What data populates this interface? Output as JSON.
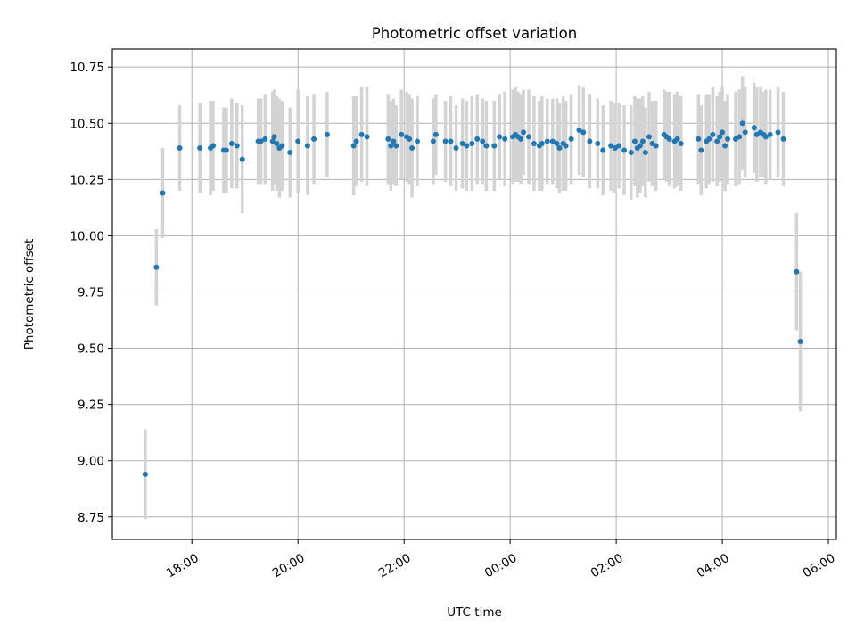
{
  "chart_data": {
    "type": "scatter",
    "title": "Photometric offset variation",
    "xlabel": "UTC time",
    "ylabel": "Photometric offset",
    "xlim_hours": [
      16.5,
      30.15
    ],
    "ylim": [
      8.65,
      10.83
    ],
    "grid": true,
    "x_ticks": [
      {
        "t": 18,
        "label": "18:00"
      },
      {
        "t": 20,
        "label": "20:00"
      },
      {
        "t": 22,
        "label": "22:00"
      },
      {
        "t": 24,
        "label": "00:00"
      },
      {
        "t": 26,
        "label": "02:00"
      },
      {
        "t": 28,
        "label": "04:00"
      },
      {
        "t": 30,
        "label": "06:00"
      }
    ],
    "y_ticks": [
      {
        "v": 8.75,
        "label": "8.75"
      },
      {
        "v": 9.0,
        "label": "9.00"
      },
      {
        "v": 9.25,
        "label": "9.25"
      },
      {
        "v": 9.5,
        "label": "9.50"
      },
      {
        "v": 9.75,
        "label": "9.75"
      },
      {
        "v": 10.0,
        "label": "10.00"
      },
      {
        "v": 10.25,
        "label": "10.25"
      },
      {
        "v": 10.5,
        "label": "10.50"
      },
      {
        "v": 10.75,
        "label": "10.75"
      }
    ],
    "colors": {
      "point": "#1f77b4",
      "errorbar": "#d3d3d3",
      "grid": "#b0b0b0"
    },
    "points": [
      [
        17.12,
        8.94,
        0.2
      ],
      [
        17.33,
        9.86,
        0.17
      ],
      [
        17.45,
        10.19,
        0.2
      ],
      [
        17.77,
        10.39,
        0.19
      ],
      [
        18.15,
        10.39,
        0.2
      ],
      [
        18.35,
        10.39,
        0.21
      ],
      [
        18.4,
        10.4,
        0.2
      ],
      [
        18.6,
        10.38,
        0.19
      ],
      [
        18.65,
        10.38,
        0.19
      ],
      [
        18.75,
        10.41,
        0.2
      ],
      [
        18.85,
        10.4,
        0.19
      ],
      [
        18.95,
        10.34,
        0.24
      ],
      [
        19.25,
        10.42,
        0.19
      ],
      [
        19.3,
        10.42,
        0.19
      ],
      [
        19.38,
        10.43,
        0.2
      ],
      [
        19.52,
        10.42,
        0.22
      ],
      [
        19.55,
        10.44,
        0.21
      ],
      [
        19.6,
        10.41,
        0.21
      ],
      [
        19.65,
        10.39,
        0.22
      ],
      [
        19.7,
        10.4,
        0.2
      ],
      [
        19.85,
        10.37,
        0.2
      ],
      [
        20.0,
        10.42,
        0.23
      ],
      [
        20.18,
        10.4,
        0.22
      ],
      [
        20.3,
        10.43,
        0.2
      ],
      [
        20.55,
        10.45,
        0.19
      ],
      [
        21.05,
        10.4,
        0.22
      ],
      [
        21.1,
        10.42,
        0.2
      ],
      [
        21.2,
        10.45,
        0.21
      ],
      [
        21.3,
        10.44,
        0.22
      ],
      [
        21.7,
        10.43,
        0.2
      ],
      [
        21.75,
        10.4,
        0.2
      ],
      [
        21.8,
        10.42,
        0.19
      ],
      [
        21.85,
        10.4,
        0.18
      ],
      [
        21.95,
        10.45,
        0.2
      ],
      [
        22.05,
        10.44,
        0.2
      ],
      [
        22.1,
        10.43,
        0.2
      ],
      [
        22.15,
        10.39,
        0.22
      ],
      [
        22.25,
        10.42,
        0.2
      ],
      [
        22.55,
        10.42,
        0.19
      ],
      [
        22.6,
        10.45,
        0.18
      ],
      [
        22.78,
        10.42,
        0.18
      ],
      [
        22.88,
        10.42,
        0.2
      ],
      [
        22.98,
        10.39,
        0.19
      ],
      [
        23.1,
        10.41,
        0.2
      ],
      [
        23.18,
        10.4,
        0.2
      ],
      [
        23.28,
        10.41,
        0.21
      ],
      [
        23.38,
        10.43,
        0.2
      ],
      [
        23.48,
        10.42,
        0.19
      ],
      [
        23.55,
        10.4,
        0.2
      ],
      [
        23.7,
        10.4,
        0.2
      ],
      [
        23.8,
        10.44,
        0.19
      ],
      [
        23.9,
        10.43,
        0.21
      ],
      [
        24.05,
        10.44,
        0.21
      ],
      [
        24.1,
        10.45,
        0.21
      ],
      [
        24.15,
        10.44,
        0.2
      ],
      [
        24.2,
        10.43,
        0.2
      ],
      [
        24.25,
        10.46,
        0.19
      ],
      [
        24.35,
        10.44,
        0.21
      ],
      [
        24.45,
        10.41,
        0.21
      ],
      [
        24.55,
        10.4,
        0.2
      ],
      [
        24.6,
        10.41,
        0.21
      ],
      [
        24.7,
        10.42,
        0.19
      ],
      [
        24.8,
        10.42,
        0.19
      ],
      [
        24.88,
        10.41,
        0.2
      ],
      [
        24.93,
        10.39,
        0.2
      ],
      [
        25.0,
        10.41,
        0.21
      ],
      [
        25.05,
        10.4,
        0.2
      ],
      [
        25.15,
        10.43,
        0.2
      ],
      [
        25.3,
        10.47,
        0.2
      ],
      [
        25.38,
        10.46,
        0.2
      ],
      [
        25.5,
        10.42,
        0.21
      ],
      [
        25.65,
        10.41,
        0.2
      ],
      [
        25.75,
        10.38,
        0.2
      ],
      [
        25.9,
        10.4,
        0.2
      ],
      [
        25.98,
        10.39,
        0.2
      ],
      [
        26.05,
        10.4,
        0.19
      ],
      [
        26.15,
        10.38,
        0.2
      ],
      [
        26.28,
        10.37,
        0.21
      ],
      [
        26.35,
        10.42,
        0.2
      ],
      [
        26.4,
        10.39,
        0.22
      ],
      [
        26.45,
        10.4,
        0.21
      ],
      [
        26.5,
        10.42,
        0.2
      ],
      [
        26.55,
        10.37,
        0.2
      ],
      [
        26.62,
        10.44,
        0.2
      ],
      [
        26.68,
        10.41,
        0.19
      ],
      [
        26.75,
        10.4,
        0.2
      ],
      [
        26.9,
        10.45,
        0.2
      ],
      [
        26.95,
        10.44,
        0.2
      ],
      [
        27.0,
        10.43,
        0.21
      ],
      [
        27.1,
        10.42,
        0.21
      ],
      [
        27.15,
        10.43,
        0.21
      ],
      [
        27.22,
        10.41,
        0.21
      ],
      [
        27.55,
        10.43,
        0.2
      ],
      [
        27.6,
        10.38,
        0.2
      ],
      [
        27.7,
        10.42,
        0.21
      ],
      [
        27.75,
        10.43,
        0.2
      ],
      [
        27.82,
        10.45,
        0.21
      ],
      [
        27.9,
        10.42,
        0.2
      ],
      [
        27.95,
        10.44,
        0.2
      ],
      [
        28.0,
        10.46,
        0.2
      ],
      [
        28.05,
        10.4,
        0.2
      ],
      [
        28.1,
        10.43,
        0.2
      ],
      [
        28.25,
        10.43,
        0.21
      ],
      [
        28.32,
        10.44,
        0.21
      ],
      [
        28.38,
        10.5,
        0.21
      ],
      [
        28.43,
        10.46,
        0.2
      ],
      [
        28.6,
        10.48,
        0.2
      ],
      [
        28.65,
        10.45,
        0.21
      ],
      [
        28.72,
        10.46,
        0.2
      ],
      [
        28.78,
        10.45,
        0.19
      ],
      [
        28.82,
        10.44,
        0.21
      ],
      [
        28.9,
        10.45,
        0.2
      ],
      [
        29.05,
        10.46,
        0.2
      ],
      [
        29.15,
        10.43,
        0.21
      ],
      [
        29.4,
        9.84,
        0.26
      ],
      [
        29.47,
        9.53,
        0.31
      ]
    ]
  }
}
